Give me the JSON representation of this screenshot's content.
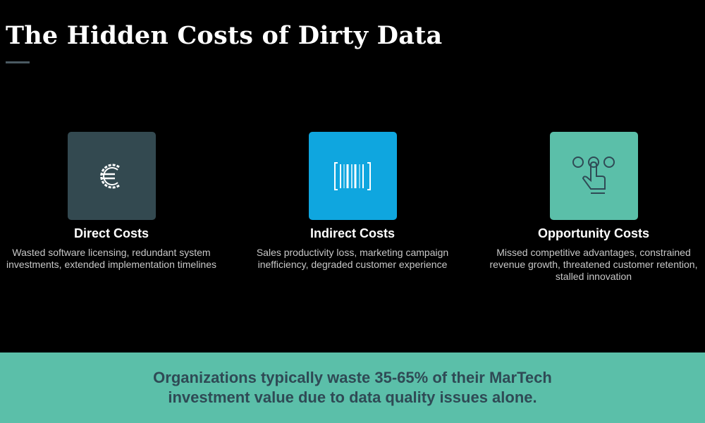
{
  "header": {
    "title": "The Hidden Costs of Dirty Data"
  },
  "cards": [
    {
      "heading": "Direct Costs",
      "text": "Wasted software licensing, redundant system investments, extended implementation timelines"
    },
    {
      "heading": "Indirect Costs",
      "text": "Sales productivity loss, marketing campaign inefficiency, degraded customer experience"
    },
    {
      "heading": "Opportunity Costs",
      "text": "Missed competitive advantages, constrained revenue growth, threatened customer retention, stalled innovation"
    }
  ],
  "banner": {
    "text": "Organizations typically waste 35-65% of their MarTech investment value due to data quality issues alone."
  }
}
